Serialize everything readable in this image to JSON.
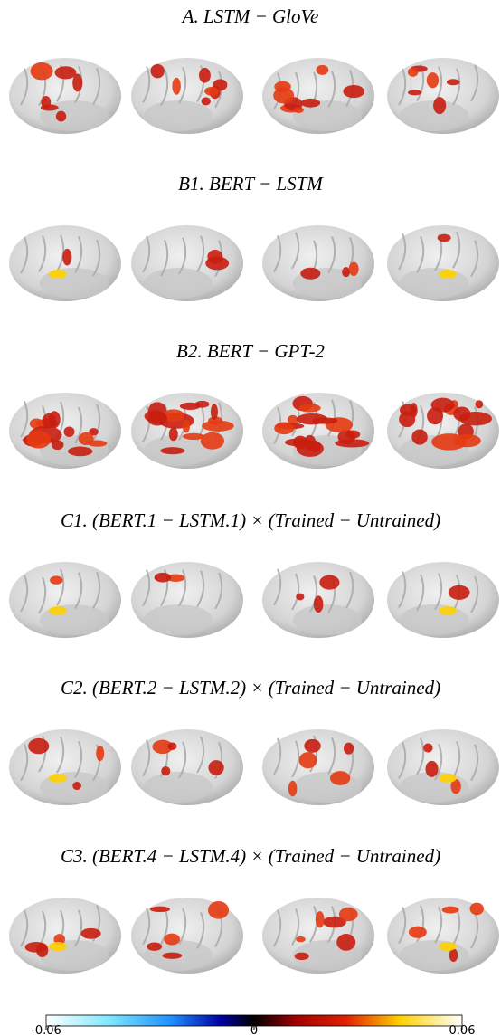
{
  "panels": [
    {
      "title": "A. LSTM − GloVe"
    },
    {
      "title": "B1. BERT − LSTM"
    },
    {
      "title": "B2. BERT − GPT-2"
    },
    {
      "title": "C1. (BERT.1 − LSTM.1) × (Trained − Untrained)"
    },
    {
      "title": "C2. (BERT.2 − LSTM.2) × (Trained − Untrained)"
    },
    {
      "title": "C3. (BERT.4 − LSTM.4) × (Trained − Untrained)"
    }
  ],
  "colorbar": {
    "ticks": [
      -0.06,
      0,
      0.06
    ]
  }
}
